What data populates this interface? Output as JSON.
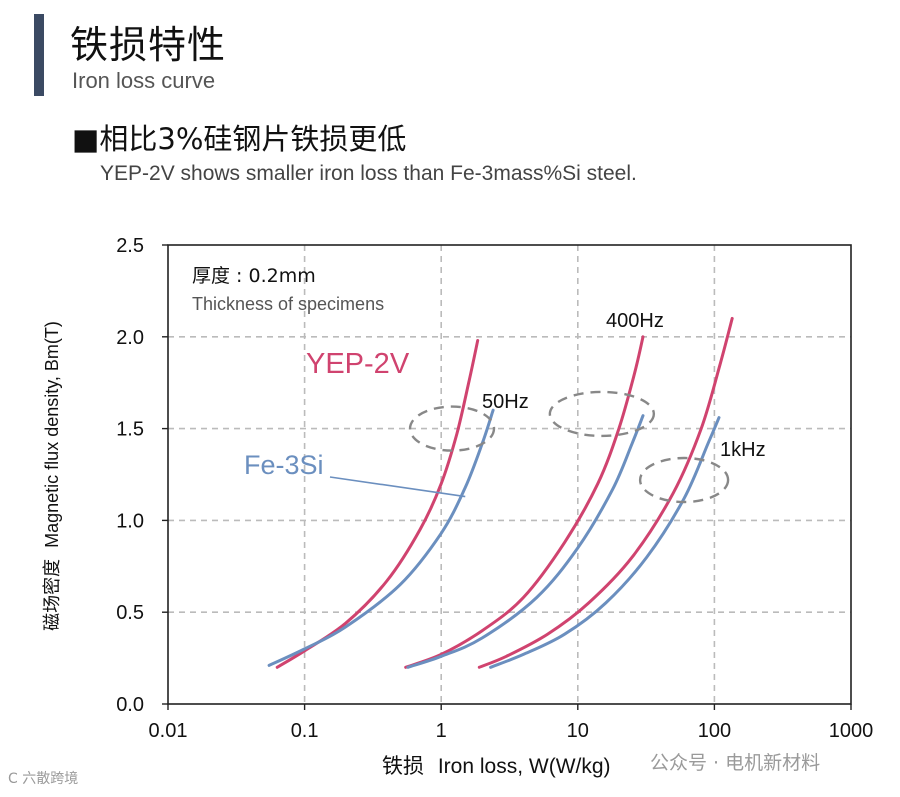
{
  "header": {
    "title_cn": "铁损特性",
    "title_en": "Iron loss curve",
    "subtitle_cn": "■相比3%硅钢片铁损更低",
    "subtitle_en": "YEP-2V shows smaller iron loss than Fe-3mass%Si steel."
  },
  "chart_data": {
    "type": "line",
    "x_scale": "log",
    "xlim": [
      0.01,
      1000
    ],
    "ylim": [
      0.0,
      2.5
    ],
    "x_ticks": [
      "0.01",
      "0.1",
      "1",
      "10",
      "100",
      "1000"
    ],
    "x_tick_values": [
      0.01,
      0.1,
      1,
      10,
      100,
      1000
    ],
    "y_ticks": [
      "0.0",
      "0.5",
      "1.0",
      "1.5",
      "2.0",
      "2.5"
    ],
    "y_tick_values": [
      0.0,
      0.5,
      1.0,
      1.5,
      2.0,
      2.5
    ],
    "grid": true,
    "xlabel_cn": "铁损",
    "xlabel_en": "Iron loss, W(W/kg)",
    "ylabel_cn": "磁场密度",
    "ylabel_en": "Magnetic flux density, Bm(T)",
    "annotations": {
      "thickness_cn": "厚度 : 0.2mm",
      "thickness_en": "Thickness of specimens",
      "yep_label": "YEP-2V",
      "fesi_label": "Fe-3Si",
      "freq_50": "50Hz",
      "freq_400": "400Hz",
      "freq_1k": "1kHz"
    },
    "colors": {
      "yep": "#d0436f",
      "fesi": "#6b8fbf",
      "grid": "#bbbbbb",
      "ellipse": "#888888"
    },
    "series": [
      {
        "material": "YEP-2V",
        "frequency": "50Hz",
        "x": [
          0.063,
          0.1,
          0.2,
          0.4,
          0.7,
          1.0,
          1.3,
          1.6,
          1.85
        ],
        "y": [
          0.2,
          0.29,
          0.44,
          0.67,
          0.95,
          1.2,
          1.47,
          1.76,
          1.98
        ]
      },
      {
        "material": "Fe-3Si",
        "frequency": "50Hz",
        "x": [
          0.055,
          0.1,
          0.2,
          0.5,
          1.0,
          1.5,
          2.0,
          2.4
        ],
        "y": [
          0.21,
          0.3,
          0.42,
          0.65,
          0.93,
          1.18,
          1.42,
          1.6
        ]
      },
      {
        "material": "YEP-2V",
        "frequency": "400Hz",
        "x": [
          0.55,
          1.0,
          2.0,
          4.0,
          8.0,
          14.0,
          20.0,
          26.0,
          30.0
        ],
        "y": [
          0.2,
          0.27,
          0.4,
          0.58,
          0.88,
          1.2,
          1.5,
          1.8,
          2.0
        ]
      },
      {
        "material": "Fe-3Si",
        "frequency": "400Hz",
        "x": [
          0.57,
          1.0,
          2.0,
          5.0,
          10.0,
          18.0,
          25.0,
          30.0
        ],
        "y": [
          0.2,
          0.26,
          0.36,
          0.58,
          0.85,
          1.17,
          1.42,
          1.57
        ]
      },
      {
        "material": "YEP-2V",
        "frequency": "1kHz",
        "x": [
          1.9,
          3.0,
          6.0,
          12.0,
          25.0,
          50.0,
          80.0,
          110.0,
          135.0
        ],
        "y": [
          0.2,
          0.26,
          0.38,
          0.55,
          0.8,
          1.15,
          1.5,
          1.85,
          2.1
        ]
      },
      {
        "material": "Fe-3Si",
        "frequency": "1kHz",
        "x": [
          2.3,
          4.0,
          8.0,
          16.0,
          32.0,
          60.0,
          90.0,
          108.0
        ],
        "y": [
          0.2,
          0.27,
          0.38,
          0.55,
          0.8,
          1.12,
          1.42,
          1.56
        ]
      }
    ]
  },
  "watermark": {
    "left": "C 六散跨境",
    "right": "公众号 · 电机新材料"
  }
}
